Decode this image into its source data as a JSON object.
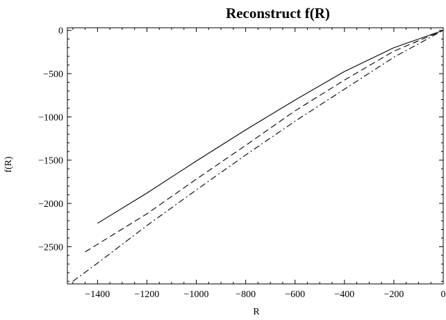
{
  "chart_data": {
    "type": "line",
    "title": "Reconstruct  f(R)",
    "xlabel": "R",
    "ylabel": "f(R)",
    "xlim": [
      -1522,
      0
    ],
    "ylim": [
      -2930,
      30
    ],
    "xticks": [
      -1400,
      -1200,
      -1000,
      -800,
      -600,
      -400,
      -200,
      0
    ],
    "xtick_labels": [
      "−1400",
      "−1200",
      "−1000",
      "−800",
      "−600",
      "−400",
      "−200",
      "0"
    ],
    "yticks": [
      0,
      -500,
      -1000,
      -1500,
      -2000,
      -2500
    ],
    "ytick_labels": [
      "0",
      "−500",
      "−1000",
      "−1500",
      "−2000",
      "−2500"
    ],
    "grid": false,
    "legend": "none",
    "series": [
      {
        "style": "solid",
        "x": [
          -1400,
          -1200,
          -1000,
          -800,
          -600,
          -400,
          -200,
          0
        ],
        "y": [
          -2230,
          -1880,
          -1510,
          -1150,
          -805,
          -475,
          -200,
          0
        ]
      },
      {
        "style": "dashed",
        "x": [
          -1450,
          -1200,
          -1000,
          -800,
          -600,
          -400,
          -200,
          0
        ],
        "y": [
          -2560,
          -2120,
          -1720,
          -1330,
          -930,
          -575,
          -240,
          0
        ]
      },
      {
        "style": "dashdot",
        "x": [
          -1500,
          -1400,
          -1200,
          -1000,
          -800,
          -600,
          -400,
          -200,
          0
        ],
        "y": [
          -2900,
          -2690,
          -2255,
          -1845,
          -1440,
          -1050,
          -680,
          -310,
          0
        ]
      }
    ]
  }
}
